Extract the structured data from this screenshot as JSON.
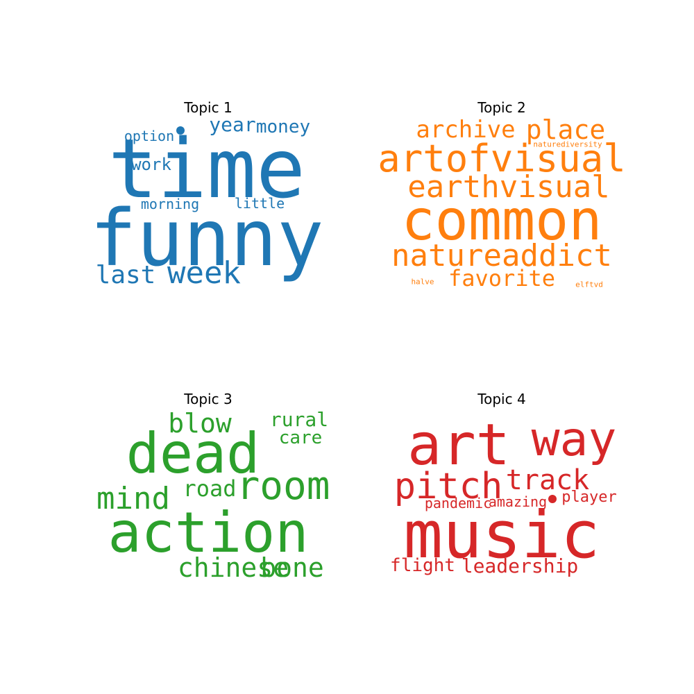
{
  "chart_data": [
    {
      "type": "wordcloud",
      "title": "Topic 1",
      "color": "#1f77b4",
      "words": [
        "time",
        "funny",
        "week",
        "last",
        "year",
        "money",
        "work",
        "option",
        "morning",
        "little"
      ]
    },
    {
      "type": "wordcloud",
      "title": "Topic 2",
      "color": "#ff7f0e",
      "words": [
        "common",
        "artofvisual",
        "natureaddict",
        "earthvisual",
        "place",
        "archive",
        "favorite",
        "naturediversity",
        "halve",
        "elftvd"
      ]
    },
    {
      "type": "wordcloud",
      "title": "Topic 3",
      "color": "#2ca02c",
      "words": [
        "action",
        "dead",
        "room",
        "mind",
        "blow",
        "chinese",
        "bone",
        "road",
        "rural",
        "care"
      ]
    },
    {
      "type": "wordcloud",
      "title": "Topic 4",
      "color": "#d62728",
      "words": [
        "music",
        "art",
        "way",
        "pitch",
        "track",
        "player",
        "amazing",
        "pandemic",
        "leadership",
        "flight"
      ]
    }
  ]
}
